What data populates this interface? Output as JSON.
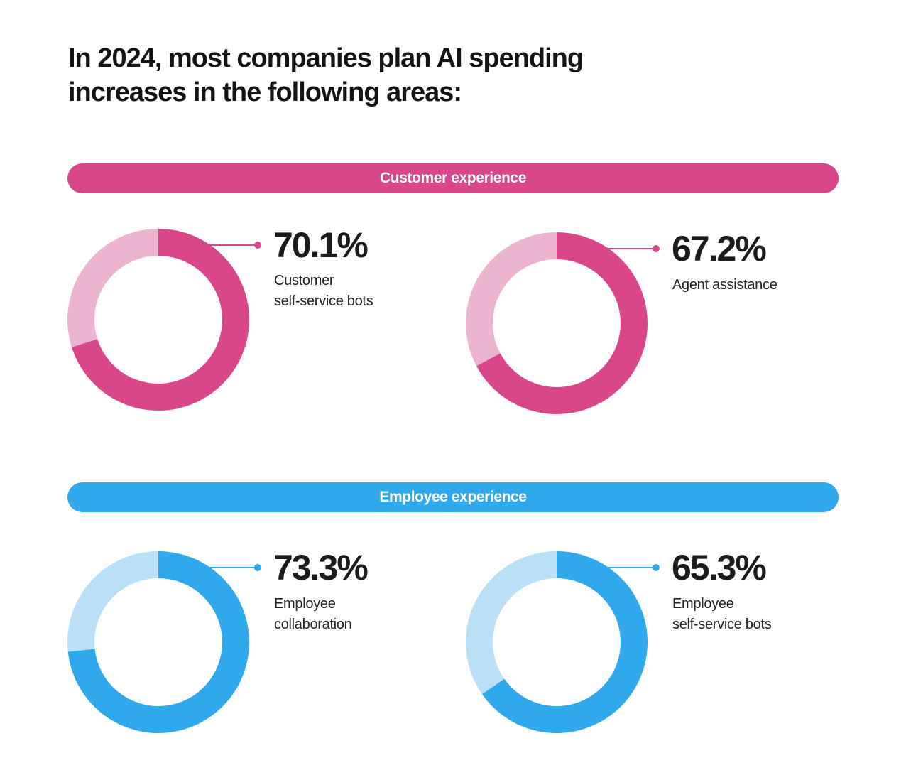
{
  "title": {
    "line1": "In 2024, most companies plan AI spending",
    "line2": "increases in the following areas:"
  },
  "colors": {
    "customer": "#d9468a",
    "customer_light": "#edb4cf",
    "employee": "#30a9ec",
    "employee_light": "#b9e0f7"
  },
  "chart_data": [
    {
      "type": "pie",
      "group": "Customer experience",
      "value": 70.1,
      "value_label": "70.1%",
      "label_lines": [
        "Customer",
        "self-service bots"
      ]
    },
    {
      "type": "pie",
      "group": "Customer experience",
      "value": 67.2,
      "value_label": "67.2%",
      "label_lines": [
        "Agent assistance"
      ]
    },
    {
      "type": "pie",
      "group": "Employee experience",
      "value": 73.3,
      "value_label": "73.3%",
      "label_lines": [
        "Employee",
        "collaboration"
      ]
    },
    {
      "type": "pie",
      "group": "Employee experience",
      "value": 65.3,
      "value_label": "65.3%",
      "label_lines": [
        "Employee",
        "self-service bots"
      ]
    }
  ],
  "sections": {
    "customer": "Customer experience",
    "employee": "Employee experience"
  }
}
